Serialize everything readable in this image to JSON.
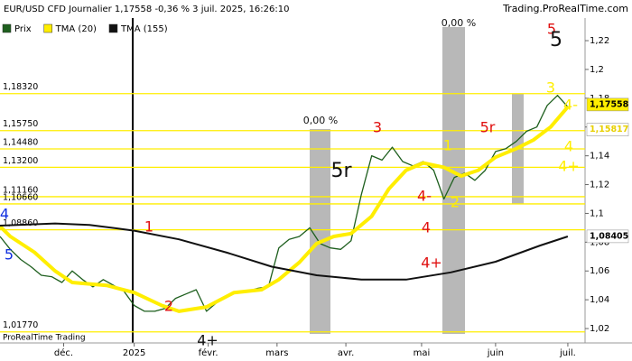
{
  "chart_data": {
    "type": "line",
    "title": "EUR/USD CFD Journalier 1,17558 -0,36 % 3 juil. 2025, 16:26:10",
    "source": "Trading.ProRealTime.com",
    "footer": "ProRealTime Trading",
    "xlim": [
      0,
      170
    ],
    "xticks": [
      {
        "value": 18.5,
        "label": "déc."
      },
      {
        "value": 39,
        "label": "2025"
      },
      {
        "value": 60.5,
        "label": "févr."
      },
      {
        "value": 80.5,
        "label": "mars"
      },
      {
        "value": 100.5,
        "label": "avr."
      },
      {
        "value": 122.5,
        "label": "mai"
      },
      {
        "value": 144,
        "label": "juin"
      },
      {
        "value": 165,
        "label": "juil."
      }
    ],
    "ylim": [
      1.01,
      1.2357
    ],
    "yticks": [
      {
        "value": 1.02,
        "label": "1,02"
      },
      {
        "value": 1.04,
        "label": "1,04"
      },
      {
        "value": 1.06,
        "label": "1,06"
      },
      {
        "value": 1.08,
        "label": "1,08"
      },
      {
        "value": 1.1,
        "label": "1,1"
      },
      {
        "value": 1.12,
        "label": "1,12"
      },
      {
        "value": 1.14,
        "label": "1,14"
      },
      {
        "value": 1.16,
        "label": "1,16"
      },
      {
        "value": 1.18,
        "label": "1,18"
      },
      {
        "value": 1.2,
        "label": "1,2"
      },
      {
        "value": 1.22,
        "label": "1,22"
      }
    ],
    "series": [
      {
        "name": "Prix",
        "color": "#1e5f1e",
        "x": [
          0,
          3,
          6,
          9,
          12,
          15,
          18,
          21,
          24,
          27,
          30,
          33,
          36,
          39,
          42,
          45,
          48,
          51,
          54,
          57,
          60,
          63,
          66,
          69,
          72,
          75,
          78,
          81,
          84,
          87,
          90,
          93,
          96,
          99,
          102,
          105,
          108,
          111,
          114,
          117,
          120,
          123,
          126,
          129,
          132,
          135,
          138,
          141,
          144,
          147,
          150,
          153,
          156,
          159,
          162,
          165
        ],
        "values": [
          1.084,
          1.075,
          1.068,
          1.063,
          1.057,
          1.056,
          1.052,
          1.06,
          1.054,
          1.049,
          1.054,
          1.05,
          1.046,
          1.036,
          1.032,
          1.032,
          1.034,
          1.041,
          1.044,
          1.047,
          1.032,
          1.038,
          1.043,
          1.045,
          1.046,
          1.048,
          1.049,
          1.076,
          1.082,
          1.084,
          1.09,
          1.079,
          1.076,
          1.075,
          1.081,
          1.113,
          1.14,
          1.137,
          1.146,
          1.136,
          1.133,
          1.136,
          1.13,
          1.11,
          1.125,
          1.128,
          1.123,
          1.13,
          1.143,
          1.145,
          1.15,
          1.157,
          1.16,
          1.175,
          1.182,
          1.174
        ]
      },
      {
        "name": "TMA (20)",
        "color": "#ffee00",
        "x": [
          0,
          3,
          10,
          16,
          21,
          26,
          31,
          39,
          47,
          52,
          60,
          68,
          76,
          81,
          87,
          92,
          97,
          102,
          108,
          113,
          118,
          123,
          129,
          134,
          139,
          144,
          150,
          155,
          160,
          165
        ],
        "values": [
          1.091,
          1.084,
          1.073,
          1.06,
          1.052,
          1.051,
          1.05,
          1.045,
          1.036,
          1.032,
          1.035,
          1.045,
          1.047,
          1.054,
          1.066,
          1.079,
          1.084,
          1.086,
          1.098,
          1.117,
          1.13,
          1.135,
          1.132,
          1.126,
          1.13,
          1.139,
          1.145,
          1.151,
          1.16,
          1.174
        ]
      },
      {
        "name": "TMA (155)",
        "color": "#111111",
        "x": [
          0,
          16,
          26,
          39,
          52,
          66,
          79,
          92,
          105,
          118,
          131,
          144,
          157,
          165
        ],
        "values": [
          1.0915,
          1.093,
          1.092,
          1.088,
          1.082,
          1.0727,
          1.063,
          1.057,
          1.054,
          1.054,
          1.059,
          1.0664,
          1.0777,
          1.084
        ]
      }
    ],
    "levels": [
      {
        "value": 1.1832,
        "label": "1,18320"
      },
      {
        "value": 1.1575,
        "label": "1,15750"
      },
      {
        "value": 1.1448,
        "label": "1,14480"
      },
      {
        "value": 1.132,
        "label": "1,13200"
      },
      {
        "value": 1.1116,
        "label": "1,11160"
      },
      {
        "value": 1.1066,
        "label": "1,10660"
      },
      {
        "value": 1.0886,
        "label": "1,08860"
      },
      {
        "value": 1.0177,
        "label": "1,01770"
      }
    ],
    "level_color": "#ffee00",
    "price_tags": [
      {
        "value": 1.17558,
        "label": "1,17558",
        "color": "#ffee00"
      },
      {
        "value": 1.15817,
        "label": "1,15817",
        "color": "#444444"
      },
      {
        "value": 1.08405,
        "label": "1,08405",
        "color": "#ffffff"
      }
    ],
    "annotations": [
      {
        "text": "1",
        "color": "#e01010"
      },
      {
        "text": "2",
        "color": "#e01010"
      },
      {
        "text": "3",
        "color": "#e01010"
      },
      {
        "text": "4",
        "color": "#e01010"
      },
      {
        "text": "4+",
        "color": "#e01010"
      },
      {
        "text": "4-",
        "color": "#e01010"
      },
      {
        "text": "5",
        "color": "#1030e0"
      },
      {
        "text": "4",
        "color": "#1030e0"
      },
      {
        "text": "5r",
        "color": "#111111"
      },
      {
        "text": "5r",
        "color": "#e01010"
      },
      {
        "text": "1",
        "color": "#ffee00"
      },
      {
        "text": "2",
        "color": "#ffee00"
      },
      {
        "text": "3",
        "color": "#ffee00"
      },
      {
        "text": "4-",
        "color": "#ffee00"
      },
      {
        "text": "4",
        "color": "#ffee00"
      },
      {
        "text": "4+",
        "color": "#ffee00"
      },
      {
        "text": "5",
        "color": "#e01010"
      },
      {
        "text": "5",
        "color": "#111111"
      },
      {
        "text": "4+",
        "color": "#111111"
      },
      {
        "text": "0,00 %",
        "color": "#111111"
      },
      {
        "text": "0,00 %",
        "color": "#111111"
      }
    ]
  }
}
